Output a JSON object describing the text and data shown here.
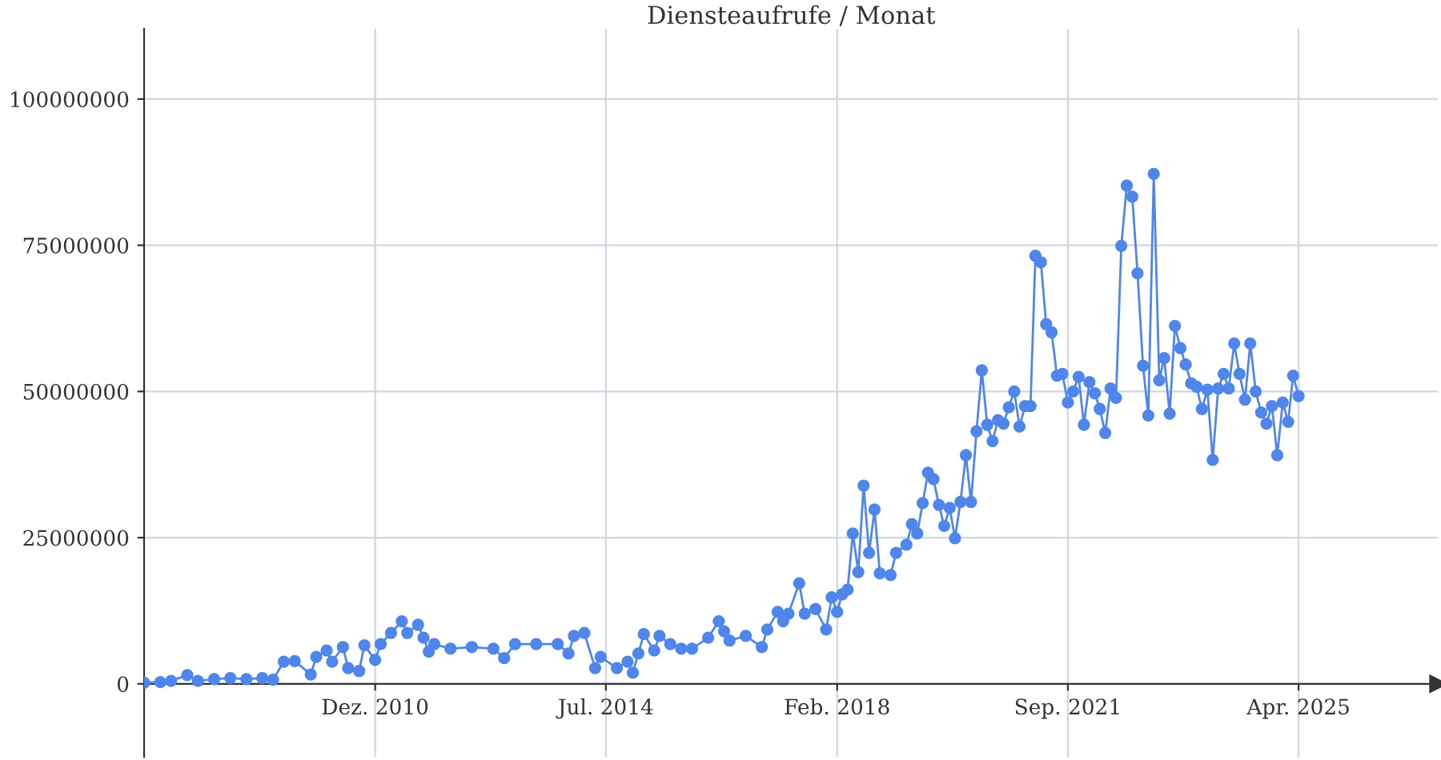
{
  "chart_data": {
    "type": "line",
    "title": "Diensteaufrufe / Monat",
    "marker": "circle",
    "line_style": "solid",
    "grid": true,
    "xlim": [
      "2007-05",
      "2027-06"
    ],
    "ylim": [
      -12500000,
      112000000
    ],
    "xticks": [
      {
        "value": "2010-12",
        "label": "Dez. 2010"
      },
      {
        "value": "2014-07",
        "label": "Jul. 2014"
      },
      {
        "value": "2018-02",
        "label": "Feb. 2018"
      },
      {
        "value": "2021-09",
        "label": "Sep. 2021"
      },
      {
        "value": "2025-04",
        "label": "Apr. 2025"
      }
    ],
    "yticks": [
      0,
      25000000,
      50000000,
      75000000,
      100000000
    ],
    "series": [
      {
        "color": "#4f86ec",
        "x": [
          "2007-05",
          "2007-08",
          "2007-10",
          "2008-01",
          "2008-03",
          "2008-06",
          "2008-09",
          "2008-12",
          "2009-03",
          "2009-05",
          "2009-07",
          "2009-09",
          "2009-12",
          "2010-01",
          "2010-03",
          "2010-04",
          "2010-06",
          "2010-07",
          "2010-09",
          "2010-10",
          "2010-12",
          "2011-01",
          "2011-03",
          "2011-05",
          "2011-06",
          "2011-08",
          "2011-09",
          "2011-10",
          "2011-11",
          "2012-02",
          "2012-06",
          "2012-10",
          "2012-12",
          "2013-02",
          "2013-06",
          "2013-10",
          "2013-12",
          "2014-01",
          "2014-03",
          "2014-05",
          "2014-06",
          "2014-09",
          "2014-11",
          "2014-12",
          "2015-01",
          "2015-02",
          "2015-04",
          "2015-05",
          "2015-07",
          "2015-09",
          "2015-11",
          "2016-02",
          "2016-04",
          "2016-05",
          "2016-06",
          "2016-09",
          "2016-12",
          "2017-01",
          "2017-03",
          "2017-04",
          "2017-05",
          "2017-07",
          "2017-08",
          "2017-10",
          "2017-12",
          "2018-01",
          "2018-02",
          "2018-03",
          "2018-04",
          "2018-05",
          "2018-06",
          "2018-07",
          "2018-08",
          "2018-09",
          "2018-10",
          "2018-12",
          "2019-01",
          "2019-03",
          "2019-04",
          "2019-05",
          "2019-06",
          "2019-07",
          "2019-08",
          "2019-09",
          "2019-10",
          "2019-11",
          "2019-12",
          "2020-01",
          "2020-02",
          "2020-03",
          "2020-04",
          "2020-05",
          "2020-06",
          "2020-07",
          "2020-08",
          "2020-09",
          "2020-10",
          "2020-11",
          "2020-12",
          "2021-01",
          "2021-02",
          "2021-03",
          "2021-04",
          "2021-05",
          "2021-06",
          "2021-07",
          "2021-08",
          "2021-09",
          "2021-10",
          "2021-11",
          "2021-12",
          "2022-01",
          "2022-02",
          "2022-03",
          "2022-04",
          "2022-05",
          "2022-06",
          "2022-07",
          "2022-08",
          "2022-09",
          "2022-10",
          "2022-11",
          "2022-12",
          "2023-01",
          "2023-02",
          "2023-03",
          "2023-04",
          "2023-05",
          "2023-06",
          "2023-07",
          "2023-08",
          "2023-09",
          "2023-10",
          "2023-11",
          "2023-12",
          "2024-01",
          "2024-02",
          "2024-03",
          "2024-04",
          "2024-05",
          "2024-06",
          "2024-07",
          "2024-08",
          "2024-09",
          "2024-10",
          "2024-11",
          "2024-12",
          "2025-01",
          "2025-02",
          "2025-03",
          "2025-04"
        ],
        "values": [
          200000,
          300000,
          500000,
          1500000,
          500000,
          800000,
          1000000,
          800000,
          1000000,
          700000,
          3800000,
          3900000,
          1600000,
          4600000,
          5700000,
          3800000,
          6300000,
          2700000,
          2200000,
          6600000,
          4100000,
          6800000,
          8700000,
          10700000,
          8700000,
          10100000,
          7900000,
          5500000,
          6800000,
          6000000,
          6300000,
          6000000,
          4400000,
          6800000,
          6800000,
          6800000,
          5200000,
          8200000,
          8700000,
          2700000,
          4600000,
          2700000,
          3800000,
          1900000,
          5200000,
          8500000,
          5700000,
          8200000,
          6800000,
          6000000,
          6000000,
          7900000,
          10700000,
          9000000,
          7400000,
          8200000,
          6300000,
          9300000,
          12300000,
          10700000,
          12000000,
          17200000,
          12000000,
          12800000,
          9300000,
          14800000,
          12300000,
          15300000,
          16100000,
          25700000,
          19100000,
          33900000,
          22400000,
          29800000,
          18900000,
          18600000,
          22400000,
          23800000,
          27300000,
          25700000,
          30900000,
          36100000,
          35000000,
          30600000,
          27000000,
          30100000,
          24900000,
          31100000,
          39100000,
          31100000,
          43200000,
          53600000,
          44300000,
          41500000,
          45100000,
          44500000,
          47300000,
          50000000,
          44000000,
          47500000,
          47500000,
          73200000,
          72100000,
          61500000,
          60100000,
          52700000,
          53000000,
          48100000,
          50000000,
          52500000,
          44300000,
          51600000,
          49700000,
          47000000,
          42900000,
          50500000,
          48900000,
          74900000,
          85200000,
          83300000,
          70200000,
          54400000,
          45900000,
          87200000,
          51900000,
          55700000,
          46200000,
          61200000,
          57400000,
          54600000,
          51400000,
          50800000,
          47000000,
          50300000,
          38300000,
          50500000,
          53000000,
          50500000,
          58200000,
          53000000,
          48600000,
          58200000,
          50000000,
          46400000,
          44500000,
          47500000,
          39100000,
          48100000,
          44800000,
          52700000,
          49200000
        ]
      }
    ]
  }
}
